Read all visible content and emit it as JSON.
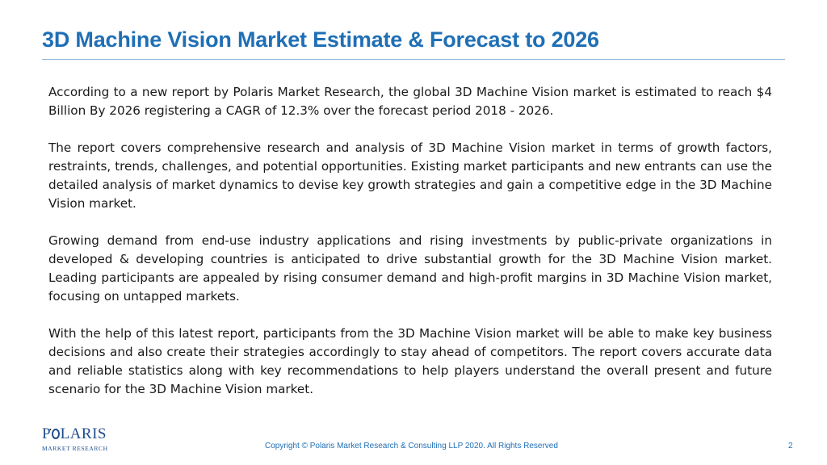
{
  "slide": {
    "title": "3D Machine Vision Market Estimate & Forecast to 2026",
    "paragraphs": [
      "According to a new report by Polaris Market Research, the global 3D Machine Vision market is estimated to reach $4 Billion By 2026 registering a CAGR of 12.3% over the forecast period 2018 - 2026.",
      "The report covers comprehensive research and analysis of 3D Machine Vision market in terms of growth factors, restraints, trends, challenges, and potential opportunities. Existing market participants and new entrants can use the detailed analysis of market dynamics to devise key growth strategies and gain a competitive edge in the 3D Machine Vision market.",
      "Growing demand from end-use industry applications and rising investments by public-private organizations in developed & developing countries is anticipated to drive substantial growth for the 3D Machine Vision market. Leading participants are appealed by rising consumer demand and high-profit margins in 3D Machine Vision market, focusing on untapped markets.",
      "With the help of this latest report, participants from the 3D Machine Vision market will be able to make key business decisions and also create their strategies accordingly to stay ahead of competitors. The report covers accurate data and reliable statistics along with key recommendations to help players understand the overall present and future scenario for the 3D Machine Vision market."
    ],
    "trailing_mark": "."
  },
  "logo": {
    "main_prefix": "P",
    "main_suffix": "LARIS",
    "sub": "MARKET RESEARCH"
  },
  "footer": {
    "copyright": "Copyright © Polaris Market Research & Consulting LLP 2020. All Rights Reserved",
    "page_number": "2"
  },
  "colors": {
    "title": "#1f6fb5",
    "logo": "#1f4e8c",
    "text": "#1a1a1a"
  }
}
